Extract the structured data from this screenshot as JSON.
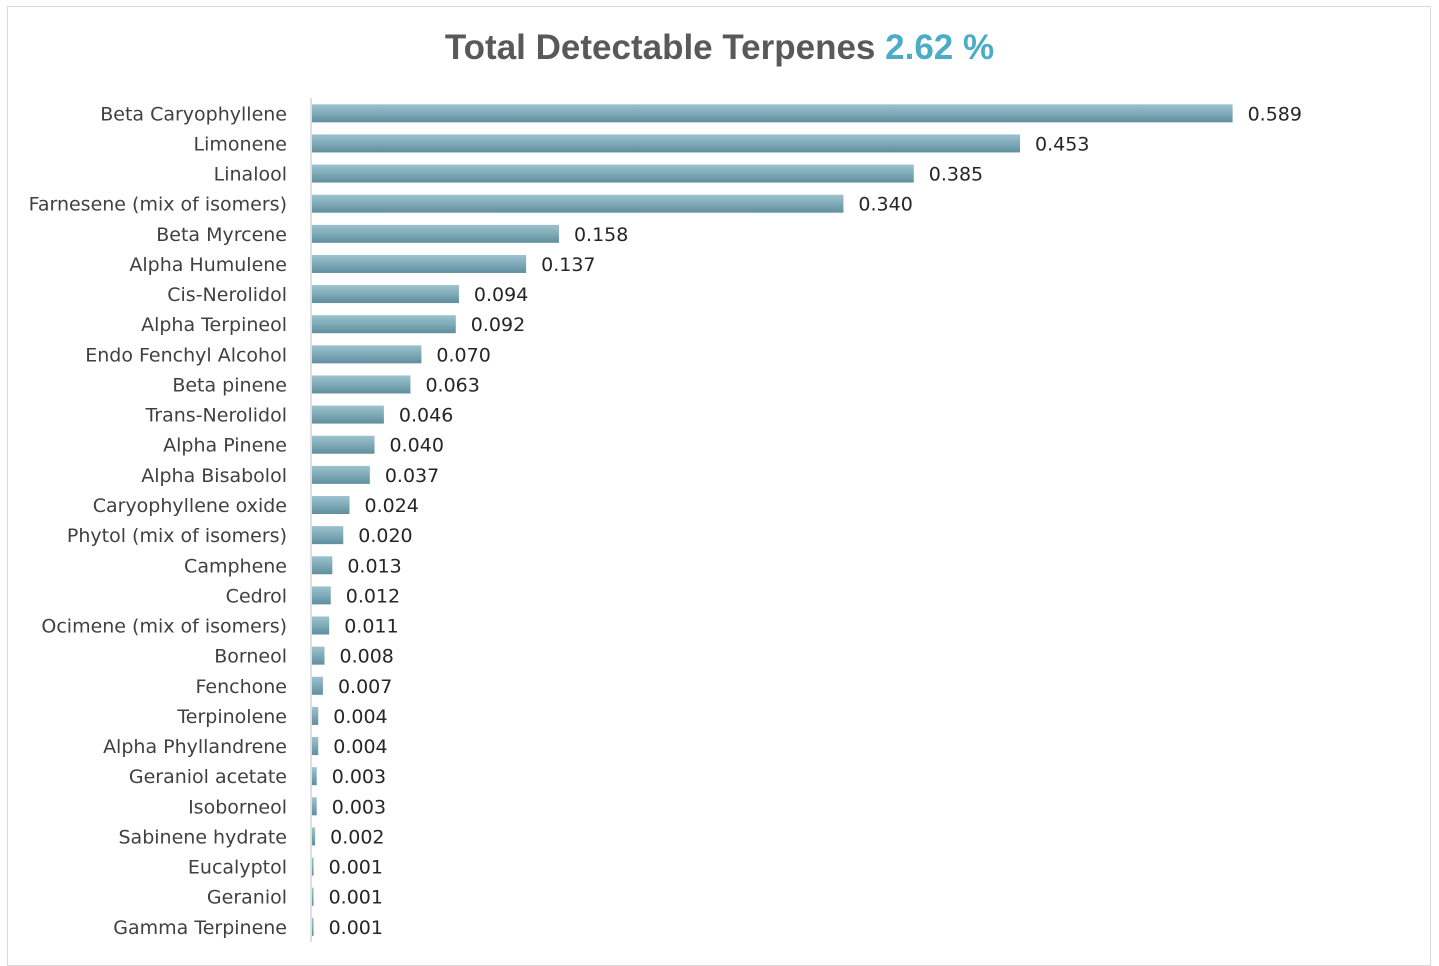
{
  "chart_data": {
    "type": "bar",
    "orientation": "horizontal",
    "title": "Total Detectable Terpenes",
    "title_value": "2.62 %",
    "xlabel": "",
    "ylabel": "",
    "grid": false,
    "legend": "none",
    "xlim": [
      0,
      0.6
    ],
    "categories": [
      "Beta Caryophyllene",
      "Limonene",
      "Linalool",
      "Farnesene (mix of isomers)",
      "Beta Myrcene",
      "Alpha Humulene",
      "Cis-Nerolidol",
      "Alpha Terpineol",
      "Endo Fenchyl Alcohol",
      "Beta pinene",
      "Trans-Nerolidol",
      "Alpha Pinene",
      "Alpha Bisabolol",
      "Caryophyllene oxide",
      "Phytol (mix of isomers)",
      "Camphene",
      "Cedrol",
      "Ocimene (mix of isomers)",
      "Borneol",
      "Fenchone",
      "Terpinolene",
      "Alpha Phyllandrene",
      "Geraniol acetate",
      "Isoborneol",
      "Sabinene hydrate",
      "Eucalyptol",
      "Geraniol",
      "Gamma Terpinene"
    ],
    "values": [
      0.589,
      0.453,
      0.385,
      0.34,
      0.158,
      0.137,
      0.094,
      0.092,
      0.07,
      0.063,
      0.046,
      0.04,
      0.037,
      0.024,
      0.02,
      0.013,
      0.012,
      0.011,
      0.008,
      0.007,
      0.004,
      0.004,
      0.003,
      0.003,
      0.002,
      0.001,
      0.001,
      0.001
    ],
    "value_labels": [
      "0.589",
      "0.453",
      "0.385",
      "0.340",
      "0.158",
      "0.137",
      "0.094",
      "0.092",
      "0.070",
      "0.063",
      "0.046",
      "0.040",
      "0.037",
      "0.024",
      "0.020",
      "0.013",
      "0.012",
      "0.011",
      "0.008",
      "0.007",
      "0.004",
      "0.004",
      "0.003",
      "0.003",
      "0.002",
      "0.001",
      "0.001",
      "0.001"
    ],
    "colors": {
      "bar": "#7faab8",
      "bar_dark": "#5f8e9d",
      "title": "#595959",
      "title_accent": "#4bacc6",
      "axis": "#bfbfbf"
    }
  }
}
